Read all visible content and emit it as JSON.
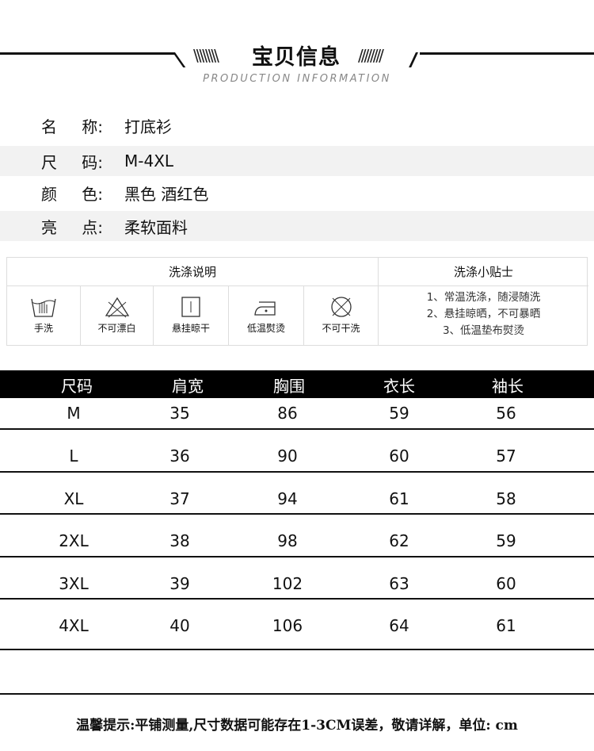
{
  "header": {
    "title": "宝贝信息",
    "subtitle": "PRODUCTION INFORMATION",
    "left_slashes": "\\\\\\\\\\\\\\\\",
    "right_slashes": "////////"
  },
  "info": [
    {
      "label": [
        "名",
        "称:"
      ],
      "value": "打底衫"
    },
    {
      "label": [
        "尺",
        "码:"
      ],
      "value": "M-4XL"
    },
    {
      "label": [
        "颜",
        "色:"
      ],
      "value": "黑色 酒红色"
    },
    {
      "label": [
        "亮",
        "点:"
      ],
      "value": "柔软面料"
    }
  ],
  "care": {
    "title": "洗涤说明",
    "tips_title": "洗涤小贴士",
    "items": [
      {
        "icon": "hand-wash-icon",
        "label": "手洗"
      },
      {
        "icon": "no-bleach-icon",
        "label": "不可漂白"
      },
      {
        "icon": "hang-dry-icon",
        "label": "悬挂晾干"
      },
      {
        "icon": "low-iron-icon",
        "label": "低温熨烫"
      },
      {
        "icon": "no-dry-clean-icon",
        "label": "不可干洗"
      }
    ],
    "tips": [
      "1、常温洗涤，随浸随洗",
      "2、悬挂晾晒，不可暴晒",
      "3、低温垫布熨烫"
    ]
  },
  "size_table": {
    "headers": [
      "尺码",
      "肩宽",
      "胸围",
      "衣长",
      "袖长"
    ],
    "rows": [
      [
        "M",
        "35",
        "86",
        "59",
        "56"
      ],
      [
        "L",
        "36",
        "90",
        "60",
        "57"
      ],
      [
        "XL",
        "37",
        "94",
        "61",
        "58"
      ],
      [
        "2XL",
        "38",
        "98",
        "62",
        "59"
      ],
      [
        "3XL",
        "39",
        "102",
        "63",
        "60"
      ],
      [
        "4XL",
        "40",
        "106",
        "64",
        "61"
      ]
    ]
  },
  "footer": "温馨提示:平铺测量,尺寸数据可能存在1-3CM误差，敬请详解，单位: cm"
}
